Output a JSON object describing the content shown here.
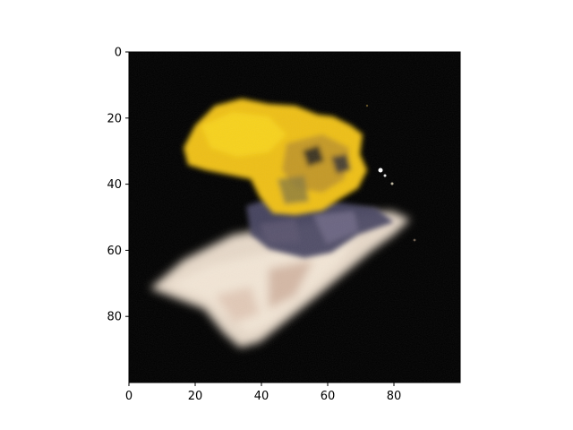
{
  "image_plot": {
    "xlim": [
      0,
      100
    ],
    "ylim_inverted": [
      100,
      0
    ],
    "background_color": "#000000",
    "x_ticks": [
      "0",
      "20",
      "40",
      "60",
      "80"
    ],
    "y_ticks": [
      "0",
      "20",
      "40",
      "60",
      "80"
    ],
    "x_tick_values": [
      0,
      20,
      40,
      60,
      80
    ],
    "y_tick_values": [
      0,
      20,
      40,
      60,
      80
    ],
    "colors": {
      "object_top": "#f2c419",
      "object_base": "#e8dcc9",
      "shadow": "#3f3b56"
    }
  }
}
